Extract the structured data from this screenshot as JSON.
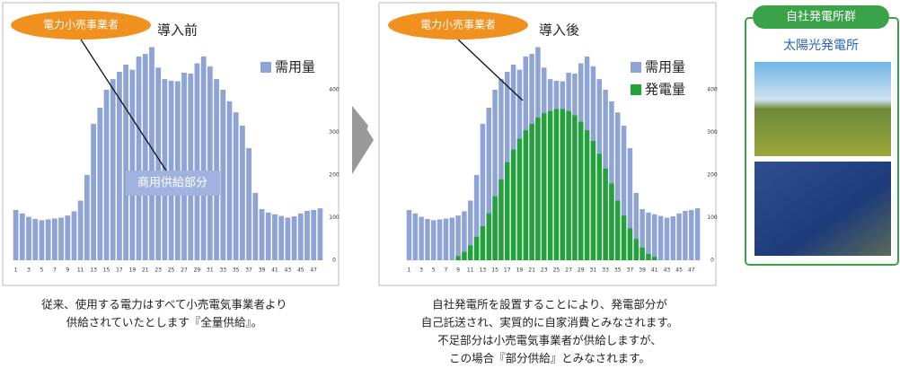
{
  "chart_data": [
    {
      "type": "bar",
      "title": "導入前",
      "tag": "電力小売事業者",
      "annotation": "商用供給部分",
      "categories": [
        1,
        null,
        3,
        null,
        5,
        null,
        7,
        null,
        9,
        null,
        11,
        null,
        13,
        null,
        15,
        null,
        17,
        null,
        19,
        null,
        21,
        null,
        23,
        null,
        25,
        null,
        27,
        null,
        29,
        null,
        31,
        null,
        33,
        null,
        35,
        null,
        37,
        null,
        39,
        null,
        41,
        null,
        43,
        null,
        45,
        null,
        47,
        null
      ],
      "series": [
        {
          "name": "需用量",
          "color": "#8ea4d6",
          "values": [
            118,
            110,
            102,
            97,
            94,
            96,
            98,
            100,
            105,
            115,
            140,
            200,
            320,
            358,
            400,
            425,
            442,
            459,
            447,
            478,
            484,
            500,
            452,
            425,
            421,
            420,
            440,
            438,
            462,
            478,
            455,
            425,
            400,
            373,
            347,
            316,
            263,
            158,
            120,
            112,
            108,
            104,
            100,
            103,
            110,
            116,
            118,
            122
          ]
        }
      ],
      "ylim": [
        0,
        520
      ],
      "yticks": [
        0,
        100,
        200,
        300,
        400
      ],
      "caption": [
        "従来、使用する電力はすべて小売電気事業者より",
        "供給されていたとします『全量供給』。"
      ]
    },
    {
      "type": "bar",
      "title": "導入後",
      "tag": "電力小売事業者",
      "categories": [
        1,
        null,
        3,
        null,
        5,
        null,
        7,
        null,
        9,
        null,
        11,
        null,
        13,
        null,
        15,
        null,
        17,
        null,
        19,
        null,
        21,
        null,
        23,
        null,
        25,
        null,
        27,
        null,
        29,
        null,
        31,
        null,
        33,
        null,
        35,
        null,
        37,
        null,
        39,
        null,
        41,
        null,
        43,
        null,
        45,
        null,
        47,
        null
      ],
      "series": [
        {
          "name": "需用量",
          "color": "#8ea4d6",
          "values": [
            118,
            110,
            102,
            97,
            94,
            96,
            98,
            100,
            105,
            115,
            140,
            200,
            320,
            358,
            400,
            425,
            442,
            459,
            447,
            478,
            484,
            500,
            452,
            425,
            421,
            420,
            440,
            438,
            462,
            478,
            455,
            425,
            400,
            373,
            347,
            316,
            263,
            158,
            120,
            112,
            108,
            104,
            100,
            103,
            110,
            116,
            118,
            122
          ]
        },
        {
          "name": "発電量",
          "color": "#22a33a",
          "values": [
            null,
            null,
            null,
            null,
            null,
            null,
            null,
            null,
            10,
            20,
            35,
            55,
            80,
            110,
            150,
            190,
            230,
            260,
            285,
            305,
            320,
            335,
            345,
            350,
            355,
            355,
            350,
            340,
            325,
            305,
            280,
            250,
            215,
            180,
            140,
            105,
            75,
            50,
            30,
            15,
            8,
            null,
            null,
            null,
            null,
            null,
            null,
            null
          ]
        }
      ],
      "ylim": [
        0,
        520
      ],
      "yticks": [
        0,
        100,
        200,
        300,
        400
      ],
      "caption": [
        "自社発電所を設置することにより、発電部分が",
        "自己託送され、実質的に自家消費とみなされます。",
        "不足部分は小売電気事業者が供給しますが、",
        "この場合『部分供給』とみなされます。"
      ]
    }
  ],
  "panel": {
    "title": "自社発電所群",
    "subtitle": "太陽光発電所"
  }
}
